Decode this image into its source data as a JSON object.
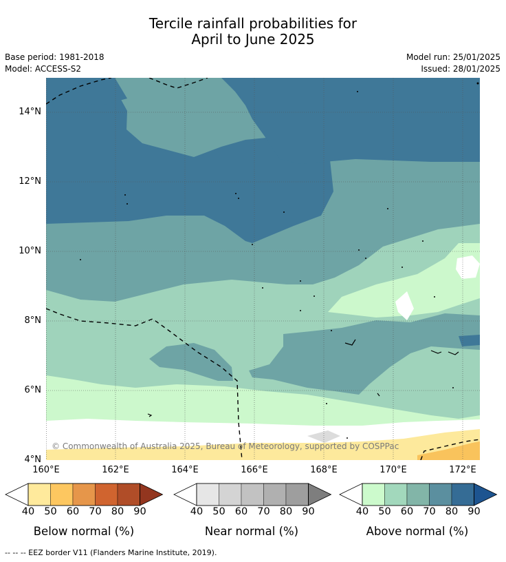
{
  "title": {
    "line1": "Tercile rainfall probabilities for",
    "line2": "April to June 2025"
  },
  "meta": {
    "base_period": "Base period: 1981-2018",
    "model": "Model: ACCESS-S2",
    "model_run": "Model run: 25/01/2025",
    "issued": "Issued: 28/01/2025"
  },
  "map": {
    "lat_labels": [
      "14°N",
      "12°N",
      "10°N",
      "8°N",
      "6°N",
      "4°N"
    ],
    "lon_labels": [
      "160°E",
      "162°E",
      "164°E",
      "166°E",
      "168°E",
      "170°E",
      "172°E"
    ],
    "copyright": "© Commonwealth of Australia 2025, Bureau of Meteorology, supported by COSPPac",
    "colors": {
      "above_40": "#ccf8cc",
      "above_50": "#9fd3bb",
      "above_60": "#6ea4a5",
      "above_70": "#3f7898",
      "normal_40": "#ffffff",
      "normal_50": "#dcdcdc",
      "below_40": "#fde99c",
      "below_50": "#f9c35c"
    }
  },
  "legends": [
    {
      "title": "Below normal (%)",
      "ticks": [
        "40",
        "50",
        "60",
        "70",
        "80",
        "90"
      ],
      "colors": [
        "#ffffff",
        "#ffea9c",
        "#fdc760",
        "#e6964a",
        "#d0642f",
        "#b04d28",
        "#93361f"
      ]
    },
    {
      "title": "Near normal (%)",
      "ticks": [
        "40",
        "50",
        "60",
        "70",
        "80",
        "90"
      ],
      "colors": [
        "#ffffff",
        "#e6e6e6",
        "#d4d4d4",
        "#c2c2c2",
        "#b0b0b0",
        "#9e9e9e",
        "#7e7e7e"
      ]
    },
    {
      "title": "Above normal (%)",
      "ticks": [
        "40",
        "50",
        "60",
        "70",
        "80",
        "90"
      ],
      "colors": [
        "#ffffff",
        "#ccfacc",
        "#a2d8bc",
        "#82b5a8",
        "#5b8f9f",
        "#356c95",
        "#1d5490"
      ]
    }
  ],
  "footer": "-- -- -- EEZ border V11 (Flanders Marine Institute, 2019)."
}
